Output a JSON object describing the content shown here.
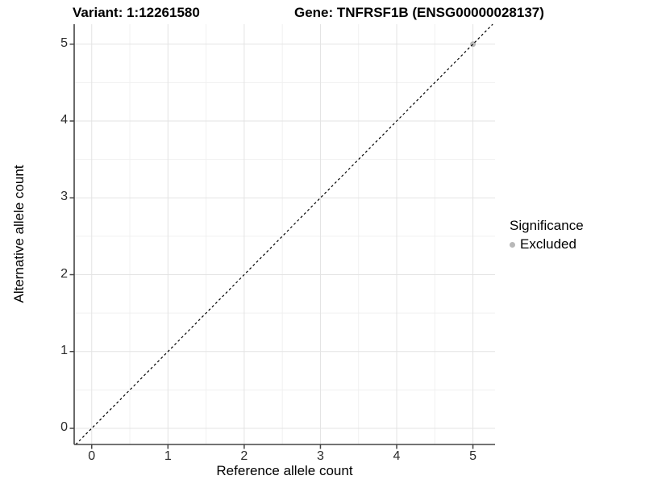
{
  "chart_data": {
    "type": "scatter",
    "title_variant": "Variant: 1:12261580",
    "title_gene": "Gene: TNFRSF1B (ENSG00000028137)",
    "xlabel": "Reference allele count",
    "ylabel": "Alternative allele count",
    "xlim": [
      -0.23,
      5.29
    ],
    "ylim": [
      -0.21,
      5.26
    ],
    "x_ticks": [
      0,
      1,
      2,
      3,
      4,
      5
    ],
    "y_ticks": [
      0,
      1,
      2,
      3,
      4,
      5
    ],
    "minor_step": 0.5,
    "grid": "major-and-minor",
    "points": [
      {
        "x": 5,
        "y": 5,
        "series": "Excluded"
      }
    ],
    "abline": {
      "slope": 1,
      "intercept": 0,
      "style": "dashed"
    },
    "legend": {
      "title": "Significance",
      "position": "right",
      "items": [
        {
          "label": "Excluded",
          "color": "#b8b8b8"
        }
      ]
    },
    "colors": {
      "excluded_point": "#b8b8b8",
      "grid_major": "#e3e3e3",
      "grid_minor": "#f0f0f0",
      "axis_line": "#454545",
      "abline": "#000000",
      "tick_label": "#2b2b2b"
    }
  }
}
